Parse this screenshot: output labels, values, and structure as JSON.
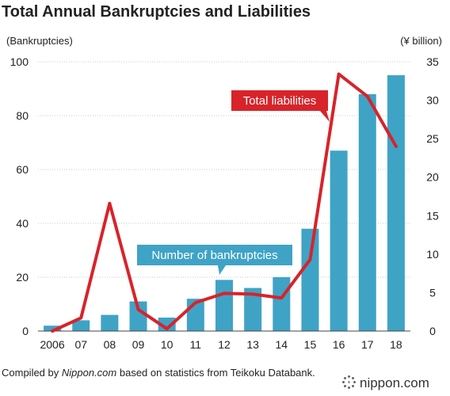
{
  "title": "Total Annual Bankruptcies and Liabilities",
  "left_unit": "(Bankruptcies)",
  "right_unit": "(¥ billion)",
  "footer": {
    "prefix": "Compiled by ",
    "source": "Nippon.com",
    "suffix": " based on statistics from Teikoku Databank."
  },
  "logo": {
    "text": "nippon.com"
  },
  "colors": {
    "bar": "#3fa3c6",
    "line": "#d8232a",
    "line_label_bg": "#d8232a",
    "bar_label_bg": "#3fa3c6"
  },
  "chart_data": {
    "type": "bar",
    "categories": [
      "2006",
      "07",
      "08",
      "09",
      "10",
      "11",
      "12",
      "13",
      "14",
      "15",
      "16",
      "17",
      "18"
    ],
    "series": [
      {
        "name": "Number of bankruptcies",
        "type": "bar",
        "axis": "left",
        "values": [
          2,
          4,
          6,
          11,
          5,
          12,
          19,
          16,
          20,
          38,
          67,
          88,
          95
        ]
      },
      {
        "name": "Total liabilities",
        "type": "line",
        "axis": "right",
        "values": [
          0,
          1.7,
          16.6,
          2.8,
          0.3,
          3.7,
          4.9,
          4.8,
          4.3,
          9.3,
          33.4,
          30.5,
          24.0
        ]
      }
    ],
    "y_left": {
      "range": [
        0,
        100
      ],
      "ticks": [
        "0",
        "20",
        "40",
        "60",
        "80",
        "100"
      ]
    },
    "y_right": {
      "range": [
        0,
        35
      ],
      "ticks": [
        "0",
        "5",
        "10",
        "15",
        "20",
        "25",
        "30",
        "35"
      ]
    }
  }
}
